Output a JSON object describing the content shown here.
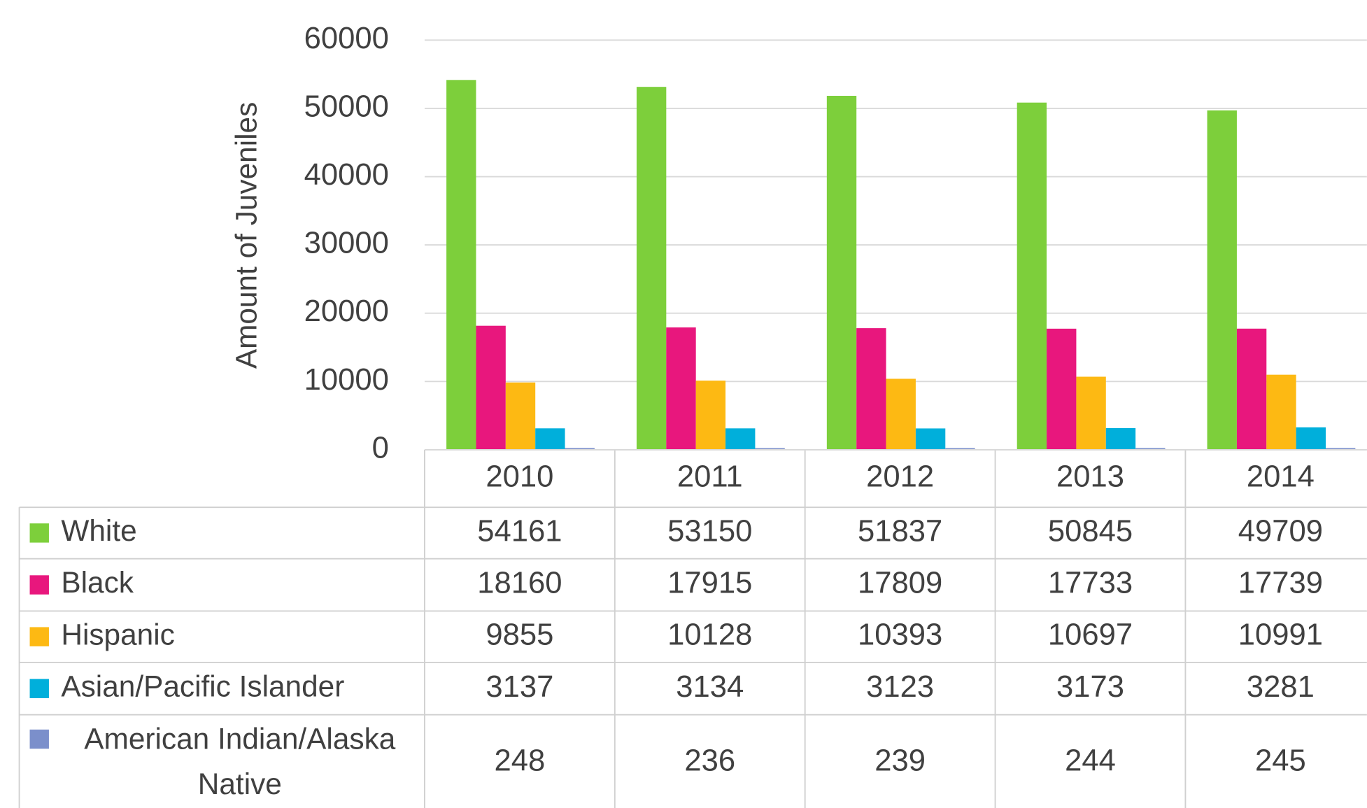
{
  "chart_data": {
    "type": "bar",
    "y_label": "Amount of Juveniles",
    "categories": [
      "2010",
      "2011",
      "2012",
      "2013",
      "2014"
    ],
    "series": [
      {
        "name": "White",
        "color": "#7dcf3b",
        "values": [
          54161,
          53150,
          51837,
          50845,
          49709
        ]
      },
      {
        "name": "Black",
        "color": "#e8177d",
        "values": [
          18160,
          17915,
          17809,
          17733,
          17739
        ]
      },
      {
        "name": "Hispanic",
        "color": "#fdb913",
        "values": [
          9855,
          10128,
          10393,
          10697,
          10991
        ]
      },
      {
        "name": "Asian/Pacific Islander",
        "color": "#00afdb",
        "values": [
          3137,
          3134,
          3123,
          3173,
          3281
        ]
      },
      {
        "name": "American Indian/Alaska Native",
        "color": "#7b8fcb",
        "values": [
          248,
          236,
          239,
          244,
          245
        ]
      }
    ],
    "ylim": [
      0,
      60000
    ],
    "yticks": [
      0,
      10000,
      20000,
      30000,
      40000,
      50000,
      60000
    ],
    "grid": true
  }
}
